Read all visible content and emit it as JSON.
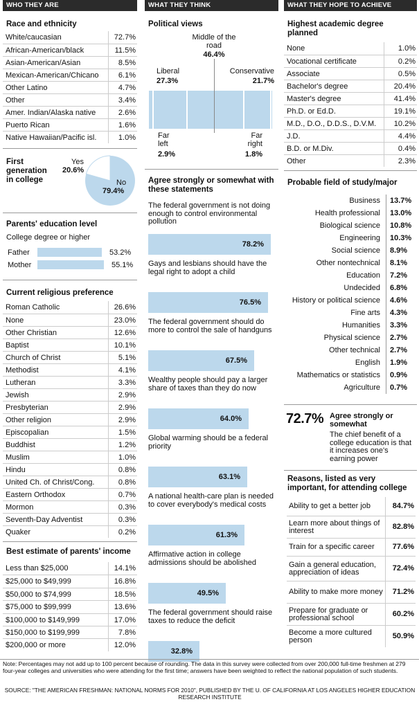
{
  "headers": {
    "who": "WHO THEY ARE",
    "think": "WHAT THEY THINK",
    "achieve": "WHAT THEY HOPE TO ACHIEVE"
  },
  "race": {
    "title": "Race and ethnicity",
    "rows": [
      [
        "White/caucasian",
        "72.7%"
      ],
      [
        "African-American/black",
        "11.5%"
      ],
      [
        "Asian-American/Asian",
        "8.5%"
      ],
      [
        "Mexican-American/Chicano",
        "6.1%"
      ],
      [
        "Other Latino",
        "4.7%"
      ],
      [
        "Other",
        "3.4%"
      ],
      [
        "Amer. Indian/Alaska native",
        "2.6%"
      ],
      [
        "Puerto Rican",
        "1.6%"
      ],
      [
        "Native Hawaiian/Pacific isl.",
        "1.0%"
      ]
    ]
  },
  "firstgen": {
    "title": "First generation in college",
    "yes_label": "Yes",
    "yes_value": "20.6%",
    "no_label": "No",
    "no_value": "79.4%",
    "yes_frac": 0.206
  },
  "parents_ed": {
    "title": "Parents' education level",
    "subtitle": "College degree or higher",
    "father_label": "Father",
    "father_value": "53.2%",
    "father_frac": 0.532,
    "mother_label": "Mother",
    "mother_value": "55.1%",
    "mother_frac": 0.551
  },
  "religion": {
    "title": "Current religious preference",
    "rows": [
      [
        "Roman Catholic",
        "26.6%"
      ],
      [
        "None",
        "23.0%"
      ],
      [
        "Other Christian",
        "12.6%"
      ],
      [
        "Baptist",
        "10.1%"
      ],
      [
        "Church of Christ",
        "5.1%"
      ],
      [
        "Methodist",
        "4.1%"
      ],
      [
        "Lutheran",
        "3.3%"
      ],
      [
        "Jewish",
        "2.9%"
      ],
      [
        "Presbyterian",
        "2.9%"
      ],
      [
        "Other religion",
        "2.9%"
      ],
      [
        "Episcopalian",
        "1.5%"
      ],
      [
        "Buddhist",
        "1.2%"
      ],
      [
        "Muslim",
        "1.0%"
      ],
      [
        "Hindu",
        "0.8%"
      ],
      [
        "United Ch. of Christ/Cong.",
        "0.8%"
      ],
      [
        "Eastern Orthodox",
        "0.7%"
      ],
      [
        "Mormon",
        "0.3%"
      ],
      [
        "Seventh-Day Adventist",
        "0.3%"
      ],
      [
        "Quaker",
        "0.2%"
      ]
    ]
  },
  "income": {
    "title": "Best estimate of parents' income",
    "rows": [
      [
        "Less than $25,000",
        "14.1%"
      ],
      [
        "$25,000 to $49,999",
        "16.8%"
      ],
      [
        "$50,000 to $74,999",
        "18.5%"
      ],
      [
        "$75,000 to $99,999",
        "13.6%"
      ],
      [
        "$100,000 to $149,999",
        "17.0%"
      ],
      [
        "$150,000 to $199,999",
        "7.8%"
      ],
      [
        "$200,000 or more",
        "12.0%"
      ]
    ]
  },
  "political": {
    "title": "Political views",
    "liberal_label": "Liberal",
    "liberal_value": "27.3%",
    "middle_label": "Middle of the road",
    "middle_value": "46.4%",
    "conservative_label": "Conservative",
    "conservative_value": "21.7%",
    "farleft_label": "Far left",
    "farleft_value": "2.9%",
    "farright_label": "Far right",
    "farright_value": "1.8%"
  },
  "agree": {
    "title": "Agree strongly or somewhat with these statements",
    "items": [
      {
        "text": "The federal government is not doing enough to control environmental pollution",
        "value": "78.2%",
        "frac": 0.782
      },
      {
        "text": "Gays and lesbians should have the legal right to adopt a child",
        "value": "76.5%",
        "frac": 0.765
      },
      {
        "text": "The federal government should do more to control the sale of handguns",
        "value": "67.5%",
        "frac": 0.675
      },
      {
        "text": "Wealthy people should pay a larger share of taxes than they do now",
        "value": "64.0%",
        "frac": 0.64
      },
      {
        "text": "Global warming should be a federal priority",
        "value": "63.1%",
        "frac": 0.631
      },
      {
        "text": "A national health-care plan is needed to cover everybody's medical costs",
        "value": "61.3%",
        "frac": 0.613
      },
      {
        "text": "Affirmative action in college admissions should be abolished",
        "value": "49.5%",
        "frac": 0.495
      },
      {
        "text": "The federal government should raise taxes to reduce the deficit",
        "value": "32.8%",
        "frac": 0.328
      }
    ]
  },
  "degree": {
    "title": "Highest academic degree planned",
    "rows": [
      [
        "None",
        "1.0%"
      ],
      [
        "Vocational certificate",
        "0.2%"
      ],
      [
        "Associate",
        "0.5%"
      ],
      [
        "Bachelor's degree",
        "20.4%"
      ],
      [
        "Master's degree",
        "41.4%"
      ],
      [
        "Ph.D. or Ed.D.",
        "19.1%"
      ],
      [
        "M.D., D.O., D.D.S., D.V.M.",
        "10.2%"
      ],
      [
        "J.D.",
        "4.4%"
      ],
      [
        "B.D. or M.Div.",
        "0.4%"
      ],
      [
        "Other",
        "2.3%"
      ]
    ]
  },
  "field": {
    "title": "Probable field of study/major",
    "rows": [
      [
        "Business",
        "13.7%"
      ],
      [
        "Health professional",
        "13.0%"
      ],
      [
        "Biological science",
        "10.8%"
      ],
      [
        "Engineering",
        "10.3%"
      ],
      [
        "Social science",
        "8.9%"
      ],
      [
        "Other nontechnical",
        "8.1%"
      ],
      [
        "Education",
        "7.2%"
      ],
      [
        "Undecided",
        "6.8%"
      ],
      [
        "History or political science",
        "4.6%"
      ],
      [
        "Fine arts",
        "4.3%"
      ],
      [
        "Humanities",
        "3.3%"
      ],
      [
        "Physical science",
        "2.7%"
      ],
      [
        "Other technical",
        "2.7%"
      ],
      [
        "English",
        "1.9%"
      ],
      [
        "Mathematics or statistics",
        "0.9%"
      ],
      [
        "Agriculture",
        "0.7%"
      ]
    ]
  },
  "benefit": {
    "value": "72.7%",
    "label": "Agree strongly or somewhat",
    "text": "The chief benefit of a college education is that it increases one's earning power"
  },
  "reasons": {
    "title": "Reasons, listed as very important, for attending college",
    "rows": [
      [
        "Ability to get a better job",
        "84.7%"
      ],
      [
        "Learn more about things of interest",
        "82.8%"
      ],
      [
        "Train for a specific career",
        "77.6%"
      ],
      [
        "Gain a general education, appreciation of ideas",
        "72.4%"
      ],
      [
        "Ability to make more money",
        "71.2%"
      ],
      [
        "Prepare for graduate or professional school",
        "60.2%"
      ],
      [
        "Become a more cultured person",
        "50.9%"
      ]
    ]
  },
  "note": "Note: Percentages may not add up to 100 percent because of rounding. The data in this survey were collected from over 200,000 full-time freshmen at 279 four-year colleges and universities who were attending for the first time; answers have been weighted to reflect the national population of such students.",
  "source": "SOURCE: \"THE AMERICAN FRESHMAN: NATIONAL NORMS FOR 2010\", PUBLISHED BY THE U. OF CALIFORNIA AT LOS ANGELES HIGHER EDUCATION RESEARCH INSTITUTE",
  "chart_data": [
    {
      "type": "table",
      "title": "Race and ethnicity",
      "categories": [
        "White/caucasian",
        "African-American/black",
        "Asian-American/Asian",
        "Mexican-American/Chicano",
        "Other Latino",
        "Other",
        "Amer. Indian/Alaska native",
        "Puerto Rican",
        "Native Hawaiian/Pacific isl."
      ],
      "values": [
        72.7,
        11.5,
        8.5,
        6.1,
        4.7,
        3.4,
        2.6,
        1.6,
        1.0
      ]
    },
    {
      "type": "pie",
      "title": "First generation in college",
      "categories": [
        "Yes",
        "No"
      ],
      "values": [
        20.6,
        79.4
      ]
    },
    {
      "type": "bar",
      "title": "Parents' education level",
      "categories": [
        "Father",
        "Mother"
      ],
      "values": [
        53.2,
        55.1
      ]
    },
    {
      "type": "table",
      "title": "Current religious preference",
      "categories": [
        "Roman Catholic",
        "None",
        "Other Christian",
        "Baptist",
        "Church of Christ",
        "Methodist",
        "Lutheran",
        "Jewish",
        "Presbyterian",
        "Other religion",
        "Episcopalian",
        "Buddhist",
        "Muslim",
        "Hindu",
        "United Ch. of Christ/Cong.",
        "Eastern Orthodox",
        "Mormon",
        "Seventh-Day Adventist",
        "Quaker"
      ],
      "values": [
        26.6,
        23.0,
        12.6,
        10.1,
        5.1,
        4.1,
        3.3,
        2.9,
        2.9,
        2.9,
        1.5,
        1.2,
        1.0,
        0.8,
        0.8,
        0.7,
        0.3,
        0.3,
        0.2
      ]
    },
    {
      "type": "table",
      "title": "Best estimate of parents' income",
      "categories": [
        "Less than $25,000",
        "$25,000 to $49,999",
        "$50,000 to $74,999",
        "$75,000 to $99,999",
        "$100,000 to $149,999",
        "$150,000 to $199,999",
        "$200,000 or more"
      ],
      "values": [
        14.1,
        16.8,
        18.5,
        13.6,
        17.0,
        7.8,
        12.0
      ]
    },
    {
      "type": "bar",
      "title": "Political views",
      "categories": [
        "Far left",
        "Liberal",
        "Middle of the road",
        "Conservative",
        "Far right"
      ],
      "values": [
        2.9,
        27.3,
        46.4,
        21.7,
        1.8
      ]
    },
    {
      "type": "bar",
      "title": "Agree strongly or somewhat with these statements",
      "values": [
        78.2,
        76.5,
        67.5,
        64.0,
        63.1,
        61.3,
        49.5,
        32.8
      ]
    },
    {
      "type": "table",
      "title": "Highest academic degree planned",
      "values": [
        1.0,
        0.2,
        0.5,
        20.4,
        41.4,
        19.1,
        10.2,
        4.4,
        0.4,
        2.3
      ]
    },
    {
      "type": "table",
      "title": "Probable field of study/major",
      "values": [
        13.7,
        13.0,
        10.8,
        10.3,
        8.9,
        8.1,
        7.2,
        6.8,
        4.6,
        4.3,
        3.3,
        2.7,
        2.7,
        1.9,
        0.9,
        0.7
      ]
    },
    {
      "type": "table",
      "title": "Reasons, listed as very important, for attending college",
      "values": [
        84.7,
        82.8,
        77.6,
        72.4,
        71.2,
        60.2,
        50.9
      ]
    }
  ]
}
